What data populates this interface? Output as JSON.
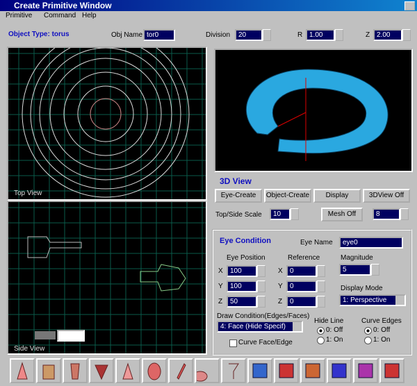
{
  "window": {
    "title": "Create Primitive Window"
  },
  "menu": [
    "Primitive",
    "Command",
    "Help"
  ],
  "object_row": {
    "object_type": "Object Type: torus",
    "obj_name_label": "Obj Name",
    "obj_name": "tor0",
    "division_label": "Division",
    "division": "20",
    "r_label": "R",
    "r": "1.00",
    "z_label": "Z",
    "z": "2.00"
  },
  "views": {
    "top": "Top View",
    "side": "Side View",
    "three_d": "3D View"
  },
  "view_buttons": [
    "Eye-Create",
    "Object-Create",
    "Display",
    "3DView Off"
  ],
  "scale_row": {
    "label": "Top/Side Scale",
    "scale": "10",
    "mesh_button": "Mesh Off",
    "mesh_value": "8"
  },
  "eye_condition": {
    "title": "Eye Condition",
    "eye_name_label": "Eye Name",
    "eye_name": "eye0",
    "eye_position_label": "Eye Position",
    "reference_label": "Reference",
    "magnitude_label": "Magnitude",
    "axes": [
      "X",
      "Y",
      "Z"
    ],
    "eye_position": [
      "100",
      "100",
      "50"
    ],
    "reference": [
      "0",
      "0",
      "0"
    ],
    "magnitude": "5",
    "display_mode_label": "Display Mode",
    "display_mode": "1: Perspective",
    "draw_condition_label": "Draw Condition(Edges/Faces)",
    "draw_condition": "4: Face (Hide Specif)",
    "curve_face_edge": "Curve Face/Edge",
    "hide_line_label": "Hide Line",
    "hide_line_options": [
      "0: Off",
      "1: On"
    ],
    "curve_edges_label": "Curve Edges",
    "curve_edges_options": [
      "0: Off",
      "1: On"
    ]
  }
}
